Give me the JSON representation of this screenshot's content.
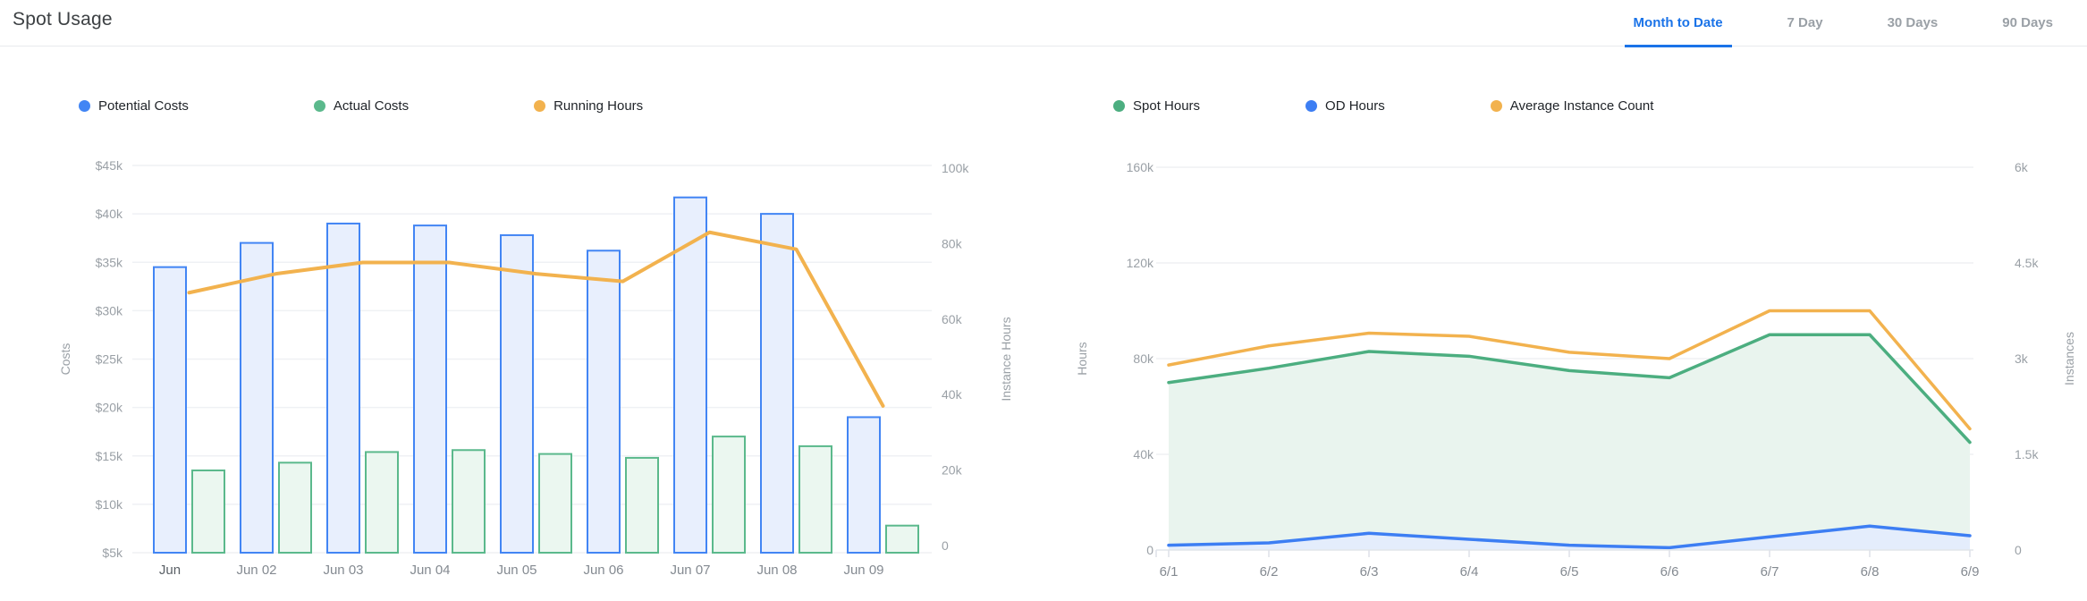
{
  "accent_color": "#1a73e8",
  "header": {
    "title": "Spot Usage",
    "tabs": [
      {
        "label": "Month to Date",
        "active": true
      },
      {
        "label": "7 Day",
        "active": false
      },
      {
        "label": "30 Days",
        "active": false
      },
      {
        "label": "90 Days",
        "active": false
      }
    ]
  },
  "chart_data": [
    {
      "id": "costs-chart",
      "type": "bar",
      "legend_position": "top",
      "grid": true,
      "categories": [
        "Jun",
        "Jun 02",
        "Jun 03",
        "Jun 04",
        "Jun 05",
        "Jun 06",
        "Jun 07",
        "Jun 08",
        "Jun 09"
      ],
      "series": [
        {
          "name": "Potential Costs",
          "type": "bar",
          "axis": "left",
          "stroke": "#4285f4",
          "fill": "#e8effd",
          "values": [
            34.5,
            37,
            39,
            38.8,
            37.8,
            36.2,
            41.7,
            40,
            19
          ]
        },
        {
          "name": "Actual Costs",
          "type": "bar",
          "axis": "left",
          "stroke": "#5bb98c",
          "fill": "#ebf7f0",
          "values": [
            13.5,
            14.3,
            15.4,
            15.6,
            15.2,
            14.8,
            17,
            16,
            7.8
          ]
        },
        {
          "name": "Running Hours",
          "type": "line",
          "axis": "right",
          "stroke": "#f2b24e",
          "values": [
            67,
            72,
            75,
            75,
            72,
            70,
            83,
            78.5,
            37
          ]
        }
      ],
      "left_axis": {
        "title": "Costs",
        "unit": "k USD",
        "min": 5,
        "max": 45,
        "ticks": [
          45,
          40,
          35,
          30,
          25,
          20,
          15,
          10,
          5
        ],
        "tick_labels": [
          "$45k",
          "$40k",
          "$35k",
          "$30k",
          "$25k",
          "$20k",
          "$15k",
          "$10k",
          "$5k"
        ]
      },
      "right_axis": {
        "title": "Instance Hours",
        "unit": "k hours",
        "min": 0,
        "max": 100,
        "ticks": [
          100,
          80,
          60,
          40,
          20,
          0
        ],
        "tick_labels": [
          "100k",
          "80k",
          "60k",
          "40k",
          "20k",
          "0"
        ]
      }
    },
    {
      "id": "hours-chart",
      "type": "area",
      "legend_position": "top",
      "grid": true,
      "categories": [
        "6/1",
        "6/2",
        "6/3",
        "6/4",
        "6/5",
        "6/6",
        "6/7",
        "6/8",
        "6/9"
      ],
      "series": [
        {
          "name": "Spot Hours",
          "type": "area",
          "axis": "left",
          "stroke": "#4cae80",
          "fill": "#e9f4ee",
          "values": [
            70,
            76,
            83,
            81,
            75,
            72,
            90,
            90,
            45
          ]
        },
        {
          "name": "OD Hours",
          "type": "area",
          "axis": "left",
          "stroke": "#3d7ef3",
          "fill": "#e4edfc",
          "values": [
            2,
            3,
            7,
            4.5,
            2,
            1,
            5.5,
            10,
            6
          ]
        },
        {
          "name": "Average Instance Count",
          "type": "line",
          "axis": "right",
          "stroke": "#f2b24e",
          "values": [
            2.9,
            3.2,
            3.4,
            3.35,
            3.1,
            3.0,
            3.75,
            3.75,
            1.9
          ]
        }
      ],
      "left_axis": {
        "title": "Hours",
        "unit": "k hours",
        "min": 0,
        "max": 160,
        "ticks": [
          160,
          120,
          80,
          40,
          0
        ],
        "tick_labels": [
          "160k",
          "120k",
          "80k",
          "40k",
          "0"
        ]
      },
      "right_axis": {
        "title": "Instances",
        "unit": "k instances",
        "min": 0,
        "max": 6,
        "ticks": [
          6,
          4.5,
          3,
          1.5,
          0
        ],
        "tick_labels": [
          "6k",
          "4.5k",
          "3k",
          "1.5k",
          "0"
        ]
      }
    }
  ]
}
